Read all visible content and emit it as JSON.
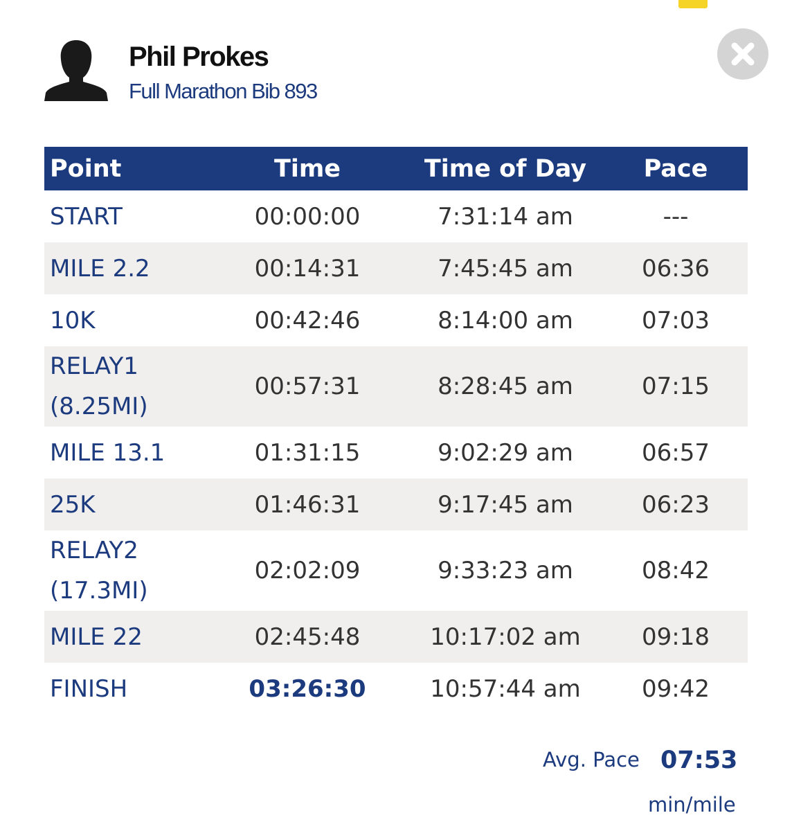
{
  "header": {
    "name": "Phil Prokes",
    "subtitle": "Full Marathon Bib 893"
  },
  "table": {
    "columns": [
      "Point",
      "Time",
      "Time of Day",
      "Pace"
    ],
    "rows": [
      [
        "START",
        "00:00:00",
        "7:31:14 am",
        "---"
      ],
      [
        "MILE 2.2",
        "00:14:31",
        "7:45:45 am",
        "06:36"
      ],
      [
        "10K",
        "00:42:46",
        "8:14:00 am",
        "07:03"
      ],
      [
        "RELAY1 (8.25MI)",
        "00:57:31",
        "8:28:45 am",
        "07:15"
      ],
      [
        "MILE 13.1",
        "01:31:15",
        "9:02:29 am",
        "06:57"
      ],
      [
        "25K",
        "01:46:31",
        "9:17:45 am",
        "06:23"
      ],
      [
        "RELAY2 (17.3MI)",
        "02:02:09",
        "9:33:23 am",
        "08:42"
      ],
      [
        "MILE 22",
        "02:45:48",
        "10:17:02 am",
        "09:18"
      ],
      [
        "FINISH",
        "03:26:30",
        "10:57:44 am",
        "09:42"
      ]
    ]
  },
  "summary": {
    "label": "Avg. Pace",
    "value": "07:53",
    "unit": "min/mile"
  }
}
